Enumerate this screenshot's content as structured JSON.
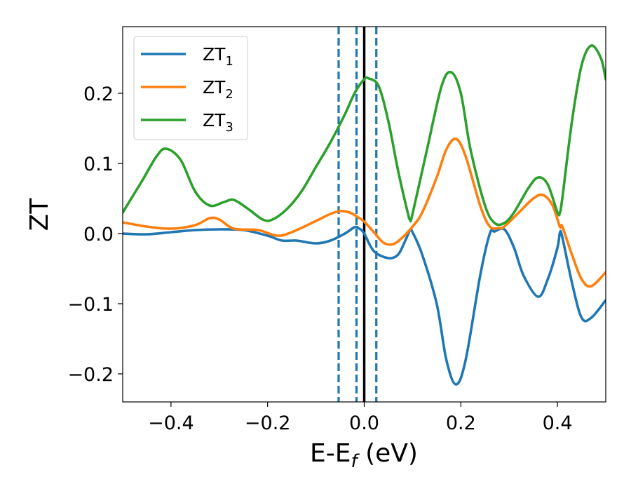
{
  "chart_data": {
    "type": "line",
    "title": "",
    "xlabel": "E-E",
    "xlabel_sub": "f",
    "xlabel_unit": " (eV)",
    "ylabel": "ZT",
    "xlim": [
      -0.5,
      0.5
    ],
    "ylim": [
      -0.24,
      0.295
    ],
    "xticks": [
      -0.4,
      -0.2,
      0.0,
      0.2,
      0.4
    ],
    "xtick_labels": [
      "−0.4",
      "−0.2",
      "0.0",
      "0.2",
      "0.4"
    ],
    "yticks": [
      -0.2,
      -0.1,
      0.0,
      0.1,
      0.2
    ],
    "ytick_labels": [
      "−0.2",
      "−0.1",
      "0.0",
      "0.1",
      "0.2"
    ],
    "grid": false,
    "legend": "top-left",
    "vlines": [
      {
        "x": 0.0,
        "style": "solid",
        "color": "#000000"
      },
      {
        "x": -0.053,
        "style": "dashed",
        "color": "#1f77b4"
      },
      {
        "x": -0.016,
        "style": "dashed",
        "color": "#1f77b4"
      },
      {
        "x": 0.025,
        "style": "dashed",
        "color": "#1f77b4"
      }
    ],
    "series": [
      {
        "name": "ZT",
        "sub": "1",
        "color": "#1f77b4",
        "x": [
          -0.5,
          -0.45,
          -0.4,
          -0.35,
          -0.3,
          -0.25,
          -0.2,
          -0.17,
          -0.14,
          -0.1,
          -0.07,
          -0.04,
          -0.02,
          -0.01,
          0.0,
          0.02,
          0.05,
          0.07,
          0.085,
          0.095,
          0.1,
          0.12,
          0.15,
          0.17,
          0.19,
          0.21,
          0.24,
          0.26,
          0.27,
          0.29,
          0.31,
          0.33,
          0.36,
          0.38,
          0.4,
          0.405,
          0.41,
          0.43,
          0.45,
          0.47,
          0.5
        ],
        "y": [
          0.0,
          -0.001,
          0.002,
          0.005,
          0.006,
          0.005,
          -0.003,
          -0.01,
          -0.01,
          -0.014,
          -0.01,
          0.0,
          0.009,
          0.007,
          0.0,
          -0.025,
          -0.035,
          -0.03,
          -0.01,
          0.005,
          0.002,
          -0.03,
          -0.1,
          -0.18,
          -0.215,
          -0.18,
          -0.06,
          0.0,
          0.003,
          0.006,
          -0.02,
          -0.06,
          -0.09,
          -0.065,
          -0.02,
          0.001,
          -0.005,
          -0.07,
          -0.12,
          -0.12,
          -0.095
        ]
      },
      {
        "name": "ZT",
        "sub": "2",
        "color": "#ff7f0e",
        "x": [
          -0.5,
          -0.45,
          -0.4,
          -0.35,
          -0.32,
          -0.3,
          -0.27,
          -0.22,
          -0.18,
          -0.15,
          -0.1,
          -0.07,
          -0.05,
          -0.03,
          -0.01,
          0.0,
          0.02,
          0.04,
          0.06,
          0.08,
          0.1,
          0.12,
          0.15,
          0.17,
          0.19,
          0.21,
          0.24,
          0.26,
          0.28,
          0.29,
          0.32,
          0.35,
          0.37,
          0.39,
          0.405,
          0.41,
          0.43,
          0.45,
          0.47,
          0.5
        ],
        "y": [
          0.016,
          0.01,
          0.007,
          0.012,
          0.022,
          0.02,
          0.007,
          0.005,
          -0.003,
          0.002,
          0.018,
          0.028,
          0.032,
          0.03,
          0.022,
          0.017,
          0.002,
          -0.013,
          -0.015,
          -0.005,
          0.01,
          0.03,
          0.08,
          0.12,
          0.135,
          0.11,
          0.04,
          0.01,
          0.008,
          0.01,
          0.03,
          0.05,
          0.055,
          0.04,
          0.01,
          0.01,
          -0.03,
          -0.065,
          -0.075,
          -0.055
        ]
      },
      {
        "name": "ZT",
        "sub": "3",
        "color": "#2ca02c",
        "x": [
          -0.5,
          -0.46,
          -0.43,
          -0.41,
          -0.38,
          -0.35,
          -0.32,
          -0.29,
          -0.27,
          -0.24,
          -0.21,
          -0.19,
          -0.16,
          -0.13,
          -0.1,
          -0.07,
          -0.04,
          -0.02,
          0.0,
          0.01,
          0.03,
          0.05,
          0.07,
          0.09,
          0.095,
          0.1,
          0.13,
          0.16,
          0.18,
          0.2,
          0.22,
          0.25,
          0.27,
          0.29,
          0.31,
          0.34,
          0.36,
          0.38,
          0.4,
          0.405,
          0.41,
          0.43,
          0.45,
          0.47,
          0.49,
          0.5
        ],
        "y": [
          0.03,
          0.075,
          0.11,
          0.121,
          0.105,
          0.06,
          0.04,
          0.045,
          0.048,
          0.035,
          0.02,
          0.02,
          0.035,
          0.06,
          0.095,
          0.13,
          0.17,
          0.2,
          0.22,
          0.221,
          0.21,
          0.16,
          0.09,
          0.03,
          0.02,
          0.028,
          0.12,
          0.21,
          0.23,
          0.2,
          0.12,
          0.04,
          0.015,
          0.015,
          0.03,
          0.065,
          0.08,
          0.07,
          0.03,
          0.03,
          0.05,
          0.16,
          0.24,
          0.268,
          0.25,
          0.22
        ]
      }
    ]
  }
}
